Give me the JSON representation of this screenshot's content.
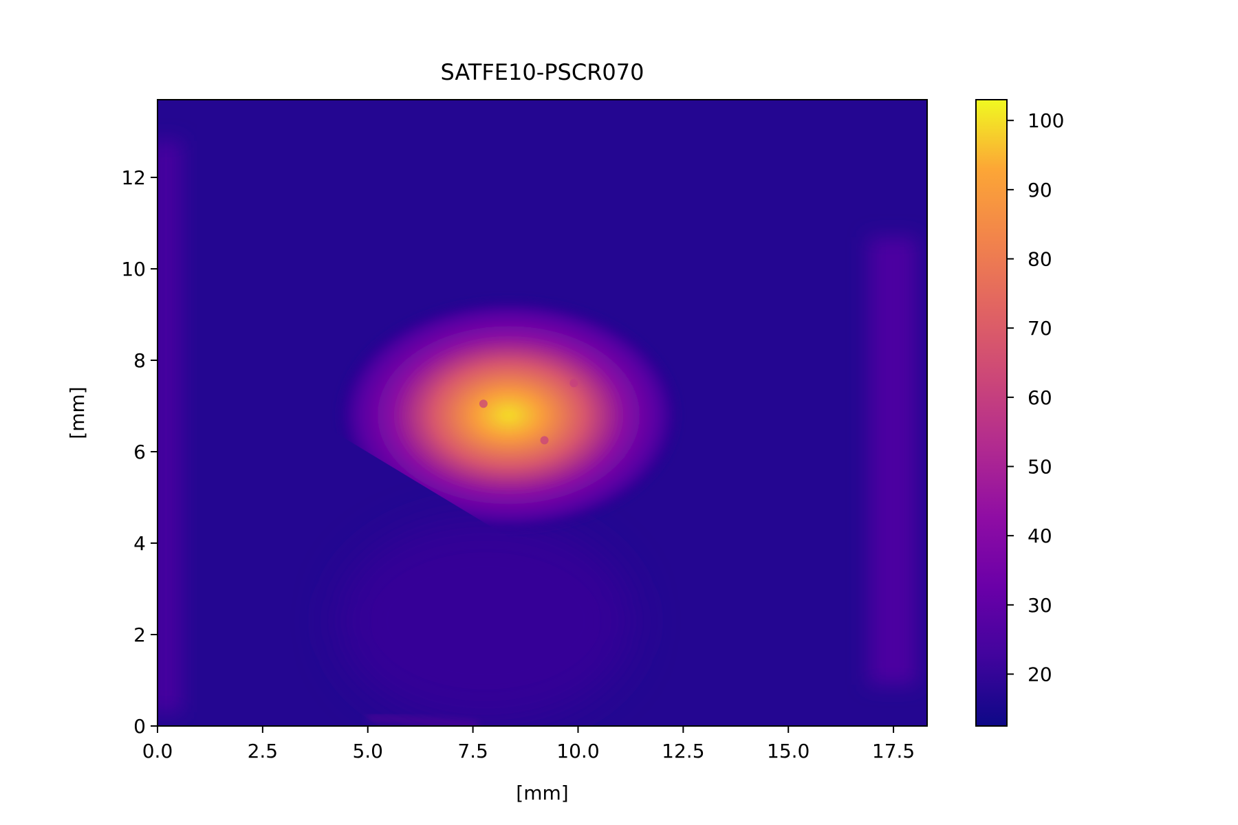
{
  "chart_data": {
    "type": "heatmap",
    "title": "SATFE10-PSCR070",
    "xlabel": "[mm]",
    "ylabel": "[mm]",
    "xlim": [
      0,
      18.3
    ],
    "ylim": [
      0,
      13.7
    ],
    "xticks": [
      0.0,
      2.5,
      5.0,
      7.5,
      10.0,
      12.5,
      15.0,
      17.5
    ],
    "xtick_labels": [
      "0.0",
      "2.5",
      "5.0",
      "7.5",
      "10.0",
      "12.5",
      "15.0",
      "17.5"
    ],
    "yticks": [
      0,
      2,
      4,
      6,
      8,
      10,
      12
    ],
    "ytick_labels": [
      "0",
      "2",
      "4",
      "6",
      "8",
      "10",
      "12"
    ],
    "colormap": "plasma",
    "colorbar": {
      "range": [
        12.5,
        103
      ],
      "ticks": [
        20,
        30,
        40,
        50,
        60,
        70,
        80,
        90,
        100
      ],
      "tick_labels": [
        "20",
        "30",
        "40",
        "50",
        "60",
        "70",
        "80",
        "90",
        "100"
      ]
    },
    "background_level": 17,
    "beam_spot": {
      "center_mm": [
        8.5,
        6.7
      ],
      "peak_value": 100,
      "spot_radius_mm": [
        4.0,
        2.5
      ],
      "clipped_by_straight_edge": true,
      "edge_from_mm": [
        4.8,
        6.1
      ],
      "edge_to_mm": [
        10.2,
        3.1
      ]
    },
    "grid": false,
    "legend": "none"
  }
}
